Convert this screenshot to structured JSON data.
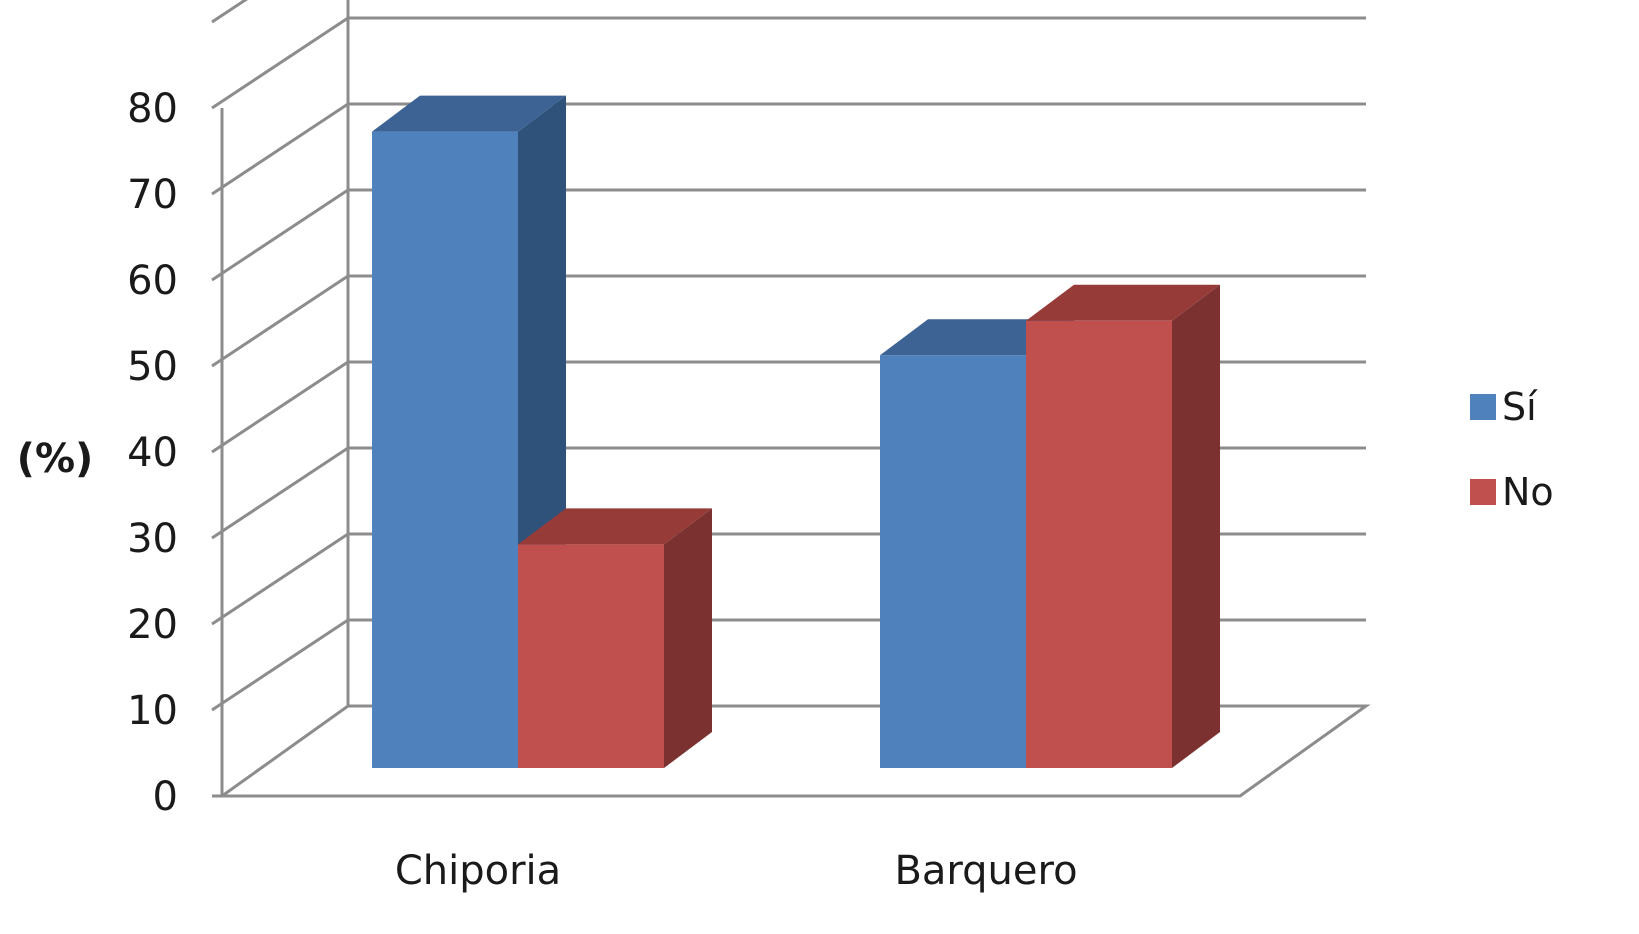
{
  "chart_data": {
    "type": "bar",
    "title": "",
    "xlabel": "",
    "ylabel": "(%)",
    "ylim": [
      0,
      80
    ],
    "yticks": [
      0,
      10,
      20,
      30,
      40,
      50,
      60,
      70,
      80
    ],
    "categories": [
      "Chiporia",
      "Barquero"
    ],
    "series": [
      {
        "name": "Sí",
        "values": [
          74,
          48
        ],
        "color": "#4f81bd",
        "side_color": "#2f527b",
        "top_color": "#3c6394"
      },
      {
        "name": "No",
        "values": [
          26,
          52
        ],
        "color": "#c0504d",
        "side_color": "#7a3130",
        "top_color": "#973b39"
      }
    ],
    "grid": true,
    "legend": "right",
    "style": "3d-clustered"
  }
}
